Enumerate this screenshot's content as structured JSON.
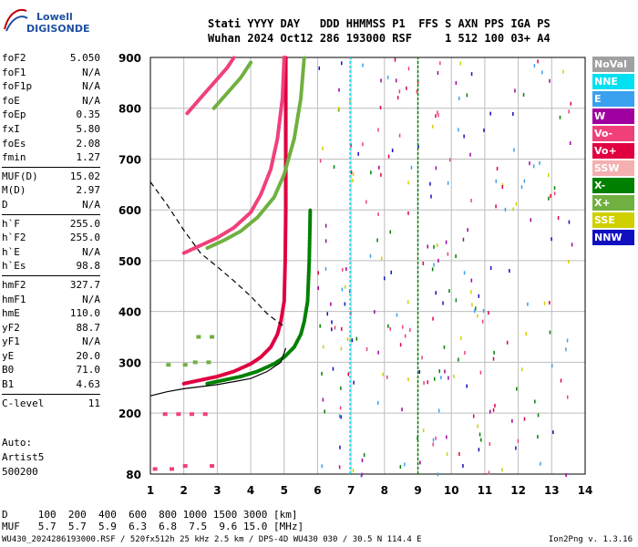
{
  "logo": {
    "line1": "Lowell",
    "line2": "DIGISONDE"
  },
  "header": {
    "line1": "Stati YYYY DAY   DDD HHMMSS P1  FFS S AXN PPS IGA PS",
    "line2": "Wuhan 2024 Oct12 286 193000 RSF     1 512 100 03+ A4"
  },
  "params_groups": [
    [
      {
        "label": "foF2",
        "value": "5.050"
      },
      {
        "label": "foF1",
        "value": "N/A"
      },
      {
        "label": "foF1p",
        "value": "N/A"
      },
      {
        "label": "foE",
        "value": "N/A"
      },
      {
        "label": "foEp",
        "value": "0.35"
      },
      {
        "label": "fxI",
        "value": "5.80"
      },
      {
        "label": "foEs",
        "value": "2.08"
      },
      {
        "label": "fmin",
        "value": "1.27"
      }
    ],
    [
      {
        "label": "MUF(D)",
        "value": "15.02"
      },
      {
        "label": "M(D)",
        "value": "2.97"
      },
      {
        "label": "D",
        "value": "N/A"
      }
    ],
    [
      {
        "label": "h`F",
        "value": "255.0"
      },
      {
        "label": "h`F2",
        "value": "255.0"
      },
      {
        "label": "h`E",
        "value": "N/A"
      },
      {
        "label": "h`Es",
        "value": "98.8"
      }
    ],
    [
      {
        "label": "hmF2",
        "value": "327.7"
      },
      {
        "label": "hmF1",
        "value": "N/A"
      },
      {
        "label": "hmE",
        "value": "110.0"
      },
      {
        "label": "yF2",
        "value": "88.7"
      },
      {
        "label": "yF1",
        "value": "N/A"
      },
      {
        "label": "yE",
        "value": "20.0"
      },
      {
        "label": "B0",
        "value": "71.0"
      },
      {
        "label": "B1",
        "value": "4.63"
      }
    ],
    [
      {
        "label": "C-level",
        "value": "11"
      }
    ]
  ],
  "auto": {
    "line1": "Auto:",
    "line2": "Artist5",
    "line3": "500200"
  },
  "legend": [
    {
      "label": "NoVal",
      "color": "#a0a0a0"
    },
    {
      "label": "NNE",
      "color": "#00e0f0"
    },
    {
      "label": "E",
      "color": "#3aa0f0"
    },
    {
      "label": "W",
      "color": "#a000a0"
    },
    {
      "label": "Vo-",
      "color": "#f0407a"
    },
    {
      "label": "Vo+",
      "color": "#e00040"
    },
    {
      "label": "SSW",
      "color": "#f4b0b0"
    },
    {
      "label": "X-",
      "color": "#008000"
    },
    {
      "label": "X+",
      "color": "#70b040"
    },
    {
      "label": "SSE",
      "color": "#d0d000"
    },
    {
      "label": "NNW",
      "color": "#1010c0"
    }
  ],
  "bottom": {
    "line1": "D     100  200  400  600  800 1000 1500 3000 [km]",
    "line2": "MUF   5.7  5.7  5.9  6.3  6.8  7.5  9.6 15.0 [MHz]"
  },
  "footer": {
    "left": "WU430_2024286193000.RSF / 520fx512h 25 kHz 2.5 km / DPS-4D WU430 030 / 30.5 N 114.4 E",
    "right": "Ion2Png v. 1.3.16"
  },
  "chart_data": {
    "type": "scatter",
    "title": "",
    "xlabel": "",
    "ylabel": "",
    "xlim": [
      1,
      14
    ],
    "ylim": [
      80,
      900
    ],
    "x_ticks": [
      1,
      2,
      3,
      4,
      5,
      6,
      7,
      8,
      9,
      10,
      11,
      12,
      13,
      14
    ],
    "y_ticks": [
      80,
      200,
      300,
      400,
      500,
      600,
      700,
      800,
      900
    ],
    "grid": true,
    "series": [
      {
        "name": "Vo+",
        "color": "#e00040",
        "style": "trace",
        "points": [
          [
            2.0,
            258
          ],
          [
            2.5,
            265
          ],
          [
            3.0,
            272
          ],
          [
            3.5,
            282
          ],
          [
            4.0,
            297
          ],
          [
            4.3,
            310
          ],
          [
            4.6,
            330
          ],
          [
            4.8,
            355
          ],
          [
            4.9,
            380
          ],
          [
            5.0,
            420
          ],
          [
            5.03,
            500
          ],
          [
            5.05,
            600
          ],
          [
            5.05,
            700
          ],
          [
            5.05,
            800
          ],
          [
            5.05,
            900
          ]
        ]
      },
      {
        "name": "X+",
        "color": "#008000",
        "style": "trace",
        "points": [
          [
            2.7,
            258
          ],
          [
            3.2,
            265
          ],
          [
            3.7,
            272
          ],
          [
            4.2,
            282
          ],
          [
            4.7,
            297
          ],
          [
            5.0,
            310
          ],
          [
            5.3,
            330
          ],
          [
            5.5,
            355
          ],
          [
            5.6,
            380
          ],
          [
            5.7,
            420
          ],
          [
            5.75,
            500
          ],
          [
            5.78,
            600
          ]
        ]
      },
      {
        "name": "Vo-",
        "color": "#f0407a",
        "style": "trace",
        "points": [
          [
            2.0,
            515
          ],
          [
            2.5,
            530
          ],
          [
            3.0,
            545
          ],
          [
            3.5,
            565
          ],
          [
            4.0,
            595
          ],
          [
            4.3,
            630
          ],
          [
            4.6,
            680
          ],
          [
            4.8,
            740
          ],
          [
            4.95,
            820
          ],
          [
            5.0,
            900
          ]
        ]
      },
      {
        "name": "X+",
        "color": "#70b040",
        "style": "trace",
        "points": [
          [
            2.7,
            525
          ],
          [
            3.2,
            540
          ],
          [
            3.7,
            558
          ],
          [
            4.2,
            585
          ],
          [
            4.7,
            625
          ],
          [
            5.0,
            670
          ],
          [
            5.3,
            740
          ],
          [
            5.5,
            820
          ],
          [
            5.6,
            900
          ]
        ]
      },
      {
        "name": "Vo-",
        "color": "#f0407a",
        "style": "trace",
        "points": [
          [
            2.1,
            790
          ],
          [
            2.5,
            820
          ],
          [
            2.9,
            850
          ],
          [
            3.3,
            880
          ],
          [
            3.5,
            900
          ]
        ]
      },
      {
        "name": "X+",
        "color": "#70b040",
        "style": "trace",
        "points": [
          [
            2.9,
            800
          ],
          [
            3.3,
            830
          ],
          [
            3.7,
            860
          ],
          [
            4.0,
            890
          ]
        ]
      },
      {
        "name": "Vo-",
        "color": "#f0407a",
        "style": "cluster",
        "points": [
          [
            1.4,
            198
          ],
          [
            1.8,
            198
          ],
          [
            2.2,
            198
          ],
          [
            2.6,
            198
          ],
          [
            2.0,
            96
          ],
          [
            2.8,
            96
          ],
          [
            1.1,
            90
          ],
          [
            1.6,
            90
          ]
        ]
      },
      {
        "name": "X+",
        "color": "#70b040",
        "style": "cluster",
        "points": [
          [
            2.3,
            300
          ],
          [
            2.7,
            300
          ],
          [
            2.4,
            350
          ],
          [
            2.8,
            350
          ],
          [
            1.5,
            295
          ],
          [
            2.0,
            295
          ]
        ]
      },
      {
        "name": "NNE",
        "color": "#00e0f0",
        "style": "vline",
        "points": [
          [
            6.97,
            80
          ],
          [
            6.97,
            900
          ]
        ]
      },
      {
        "name": "X-",
        "color": "#008000",
        "style": "vline",
        "points": [
          [
            9.0,
            80
          ],
          [
            9.0,
            900
          ]
        ]
      }
    ],
    "profile": {
      "name": "electron density profile",
      "color": "#000000",
      "points": [
        [
          1.0,
          234
        ],
        [
          1.5,
          242
        ],
        [
          2.0,
          248
        ],
        [
          2.5,
          252
        ],
        [
          3.0,
          256
        ],
        [
          3.5,
          262
        ],
        [
          4.0,
          268
        ],
        [
          4.5,
          282
        ],
        [
          4.9,
          300
        ],
        [
          5.05,
          328
        ]
      ]
    },
    "muf_curve": {
      "name": "MUF curve",
      "color": "#000000",
      "points": [
        [
          1.0,
          655
        ],
        [
          1.5,
          610
        ],
        [
          2.0,
          560
        ],
        [
          2.5,
          515
        ],
        [
          3.0,
          488
        ],
        [
          3.5,
          460
        ],
        [
          4.0,
          430
        ],
        [
          4.5,
          395
        ],
        [
          5.0,
          370
        ]
      ]
    }
  }
}
